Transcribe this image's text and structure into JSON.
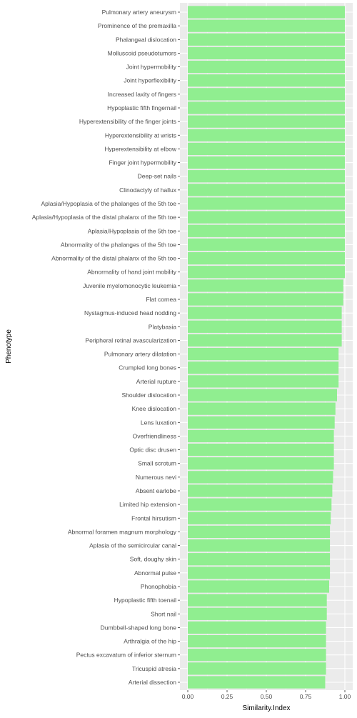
{
  "chart_data": {
    "type": "bar",
    "orientation": "horizontal",
    "xlabel": "Similarity.Index",
    "ylabel": "Phenotype",
    "xlim": [
      0,
      1.0
    ],
    "xticks": [
      "0.00",
      "0.25",
      "0.50",
      "0.75",
      "1.00"
    ],
    "grid": true,
    "bar_color": "#90ee90",
    "panel_color": "#ebebeb",
    "categories": [
      "Pulmonary artery aneurysm",
      "Prominence of the premaxilla",
      "Phalangeal dislocation",
      "Molluscoid pseudotumors",
      "Joint hypermobility",
      "Joint hyperflexibility",
      "Increased laxity of fingers",
      "Hypoplastic fifth fingernail",
      "Hyperextensibility of the finger joints",
      "Hyperextensibility at wrists",
      "Hyperextensibility at elbow",
      "Finger joint hypermobility",
      "Deep-set nails",
      "Clinodactyly of hallux",
      "Aplasia/Hypoplasia of the phalanges of the 5th toe",
      "Aplasia/Hypoplasia of the distal phalanx of the 5th toe",
      "Aplasia/Hypoplasia of the 5th toe",
      "Abnormality of the phalanges of the 5th toe",
      "Abnormality of the distal phalanx of the 5th toe",
      "Abnormality of hand joint mobility",
      "Juvenile myelomonocytic leukemia",
      "Flat cornea",
      "Nystagmus-induced head nodding",
      "Platybasia",
      "Peripheral retinal avascularization",
      "Pulmonary artery dilatation",
      "Crumpled long bones",
      "Arterial rupture",
      "Shoulder dislocation",
      "Knee dislocation",
      "Lens luxation",
      "Overfriendliness",
      "Optic disc drusen",
      "Small scrotum",
      "Numerous nevi",
      "Absent earlobe",
      "Limited hip extension",
      "Frontal hirsutism",
      "Abnormal foramen magnum morphology",
      "Aplasia of the semicircular canal",
      "Soft, doughy skin",
      "Abnormal pulse",
      "Phonophobia",
      "Hypoplastic fifth toenail",
      "Short nail",
      "Dumbbell-shaped long bone",
      "Arthralgia of the hip",
      "Pectus excavatum of inferior sternum",
      "Tricuspid atresia",
      "Arterial dissection"
    ],
    "values": [
      1.0,
      1.0,
      1.0,
      1.0,
      1.0,
      1.0,
      1.0,
      1.0,
      1.0,
      1.0,
      1.0,
      1.0,
      1.0,
      1.0,
      1.0,
      1.0,
      1.0,
      1.0,
      1.0,
      1.0,
      0.99,
      0.99,
      0.98,
      0.98,
      0.98,
      0.96,
      0.96,
      0.96,
      0.95,
      0.94,
      0.935,
      0.93,
      0.93,
      0.93,
      0.925,
      0.92,
      0.915,
      0.91,
      0.905,
      0.905,
      0.905,
      0.905,
      0.9,
      0.885,
      0.885,
      0.88,
      0.88,
      0.88,
      0.88,
      0.875
    ]
  }
}
